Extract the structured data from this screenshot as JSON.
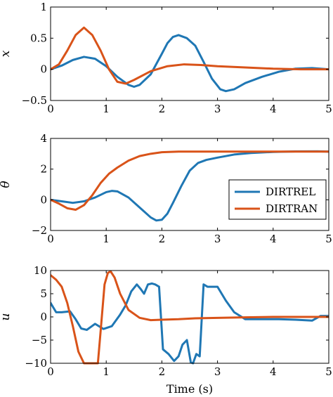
{
  "colors": {
    "DIRTREL": "#1f77b4",
    "DIRTRAN": "#d95319"
  },
  "chart_data": [
    {
      "type": "line",
      "ylabel": "x",
      "xlim": [
        0,
        5
      ],
      "ylim": [
        -0.5,
        1
      ],
      "yticks": [
        "1",
        "0.5",
        "0",
        "−0.5"
      ],
      "yticks_values": [
        1,
        0.5,
        0,
        -0.5
      ],
      "xticks": [
        "0",
        "1",
        "2",
        "3",
        "4",
        "5"
      ],
      "series": [
        {
          "name": "DIRTREL",
          "color": "#1f77b4",
          "x": [
            0,
            0.2,
            0.4,
            0.6,
            0.8,
            1.0,
            1.2,
            1.4,
            1.5,
            1.6,
            1.8,
            2.0,
            2.1,
            2.2,
            2.3,
            2.45,
            2.6,
            2.75,
            2.9,
            3.05,
            3.15,
            3.3,
            3.5,
            3.8,
            4.1,
            4.4,
            4.7,
            5.0
          ],
          "y": [
            0,
            0.06,
            0.15,
            0.2,
            0.17,
            0.05,
            -0.12,
            -0.25,
            -0.28,
            -0.25,
            -0.08,
            0.25,
            0.42,
            0.52,
            0.55,
            0.5,
            0.38,
            0.12,
            -0.15,
            -0.32,
            -0.35,
            -0.32,
            -0.22,
            -0.12,
            -0.04,
            0.01,
            0.02,
            0.0
          ]
        },
        {
          "name": "DIRTRAN",
          "color": "#d95319",
          "x": [
            0,
            0.15,
            0.3,
            0.45,
            0.6,
            0.75,
            0.9,
            1.05,
            1.2,
            1.35,
            1.5,
            1.8,
            2.1,
            2.4,
            2.7,
            3.0,
            3.5,
            4.0,
            4.5,
            5.0
          ],
          "y": [
            0,
            0.08,
            0.3,
            0.55,
            0.67,
            0.55,
            0.3,
            0.0,
            -0.2,
            -0.23,
            -0.17,
            -0.03,
            0.05,
            0.08,
            0.07,
            0.05,
            0.03,
            0.01,
            0.0,
            0.0
          ]
        }
      ]
    },
    {
      "type": "line",
      "ylabel": "θ",
      "xlim": [
        0,
        5
      ],
      "ylim": [
        -2,
        4
      ],
      "yticks": [
        "4",
        "2",
        "0",
        "−2"
      ],
      "yticks_values": [
        4,
        2,
        0,
        -2
      ],
      "xticks": [
        "0",
        "1",
        "2",
        "3",
        "4",
        "5"
      ],
      "legend": {
        "position": "right",
        "entries": [
          "DIRTREL",
          "DIRTRAN"
        ]
      },
      "series": [
        {
          "name": "DIRTREL",
          "color": "#1f77b4",
          "x": [
            0,
            0.2,
            0.4,
            0.6,
            0.8,
            1.0,
            1.1,
            1.2,
            1.4,
            1.6,
            1.8,
            1.9,
            2.0,
            2.1,
            2.2,
            2.35,
            2.5,
            2.65,
            2.8,
            3.0,
            3.3,
            3.6,
            4.0,
            4.4,
            4.8,
            5.0
          ],
          "y": [
            0,
            -0.1,
            -0.2,
            -0.1,
            0.15,
            0.5,
            0.58,
            0.55,
            0.15,
            -0.5,
            -1.15,
            -1.35,
            -1.3,
            -0.9,
            -0.2,
            0.9,
            1.9,
            2.4,
            2.6,
            2.75,
            2.95,
            3.05,
            3.12,
            3.15,
            3.16,
            3.14
          ]
        },
        {
          "name": "DIRTRAN",
          "color": "#d95319",
          "x": [
            0,
            0.15,
            0.3,
            0.45,
            0.6,
            0.75,
            0.9,
            1.05,
            1.2,
            1.4,
            1.6,
            1.8,
            2.0,
            2.3,
            2.6,
            3.0,
            3.5,
            4.0,
            4.5,
            5.0
          ],
          "y": [
            0,
            -0.25,
            -0.55,
            -0.65,
            -0.35,
            0.3,
            1.1,
            1.7,
            2.1,
            2.55,
            2.85,
            3.0,
            3.1,
            3.14,
            3.14,
            3.14,
            3.14,
            3.14,
            3.14,
            3.14
          ]
        }
      ]
    },
    {
      "type": "line",
      "ylabel": "u",
      "xlabel": "Time (s)",
      "xlim": [
        0,
        5
      ],
      "ylim": [
        -10,
        10
      ],
      "yticks": [
        "10",
        "5",
        "0",
        "−5",
        "−10"
      ],
      "yticks_values": [
        10,
        5,
        0,
        -5,
        -10
      ],
      "xticks": [
        "0",
        "1",
        "2",
        "3",
        "4",
        "5"
      ],
      "series": [
        {
          "name": "DIRTREL",
          "color": "#1f77b4",
          "x": [
            0,
            0.1,
            0.2,
            0.35,
            0.45,
            0.55,
            0.65,
            0.8,
            0.95,
            1.1,
            1.25,
            1.35,
            1.45,
            1.55,
            1.62,
            1.68,
            1.75,
            1.82,
            1.88,
            1.95,
            2.02,
            2.12,
            2.22,
            2.3,
            2.37,
            2.45,
            2.52,
            2.56,
            2.62,
            2.68,
            2.75,
            2.82,
            2.9,
            3.0,
            3.15,
            3.3,
            3.5,
            3.8,
            4.1,
            4.4,
            4.7,
            4.85,
            5.0
          ],
          "y": [
            3.0,
            1.0,
            1.0,
            1.2,
            -0.5,
            -2.5,
            -2.8,
            -1.5,
            -2.6,
            -2.0,
            0.5,
            2.5,
            5.5,
            7.0,
            6.0,
            5.0,
            7.0,
            7.2,
            7.0,
            6.5,
            -7.0,
            -8.0,
            -9.5,
            -8.5,
            -6.0,
            -5.0,
            -9.8,
            -10.0,
            -8.0,
            -8.5,
            7.0,
            6.5,
            6.5,
            6.5,
            3.5,
            1.0,
            -0.5,
            -0.5,
            -0.5,
            -0.6,
            -0.8,
            0.2,
            0.2
          ]
        },
        {
          "name": "DIRTRAN",
          "color": "#d95319",
          "x": [
            0,
            0.1,
            0.2,
            0.3,
            0.4,
            0.5,
            0.6,
            0.7,
            0.8,
            0.85,
            0.9,
            0.97,
            1.03,
            1.08,
            1.15,
            1.25,
            1.4,
            1.6,
            1.8,
            2.0,
            2.3,
            2.6,
            3.0,
            3.5,
            4.0,
            4.5,
            5.0
          ],
          "y": [
            9.0,
            8.0,
            6.5,
            3.0,
            -2.0,
            -7.5,
            -10.0,
            -10.0,
            -10.0,
            -10.0,
            -3.0,
            7.0,
            9.5,
            9.8,
            8.5,
            5.0,
            1.5,
            -0.2,
            -0.7,
            -0.6,
            -0.5,
            -0.3,
            -0.2,
            -0.1,
            0.0,
            0.0,
            0.0
          ]
        }
      ]
    }
  ]
}
